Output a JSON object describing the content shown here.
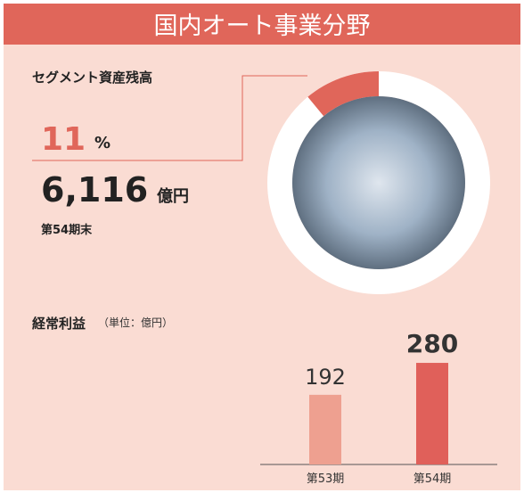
{
  "header": {
    "title": "国内オート事業分野"
  },
  "segment": {
    "label": "セグメント資産残高",
    "amount": "6,116",
    "amount_unit": "億円",
    "period": "第54期末"
  },
  "chart_data": [
    {
      "type": "pie",
      "values": [
        11
      ],
      "unit": "%",
      "color": "#e0665a",
      "ring_color": "#ffffff"
    },
    {
      "type": "bar",
      "title": "経常利益",
      "subtitle": "（単位：億円）",
      "categories": [
        "第53期",
        "第54期"
      ],
      "values": [
        192,
        280
      ],
      "colors": [
        "#eea090",
        "#e0605a"
      ]
    }
  ]
}
